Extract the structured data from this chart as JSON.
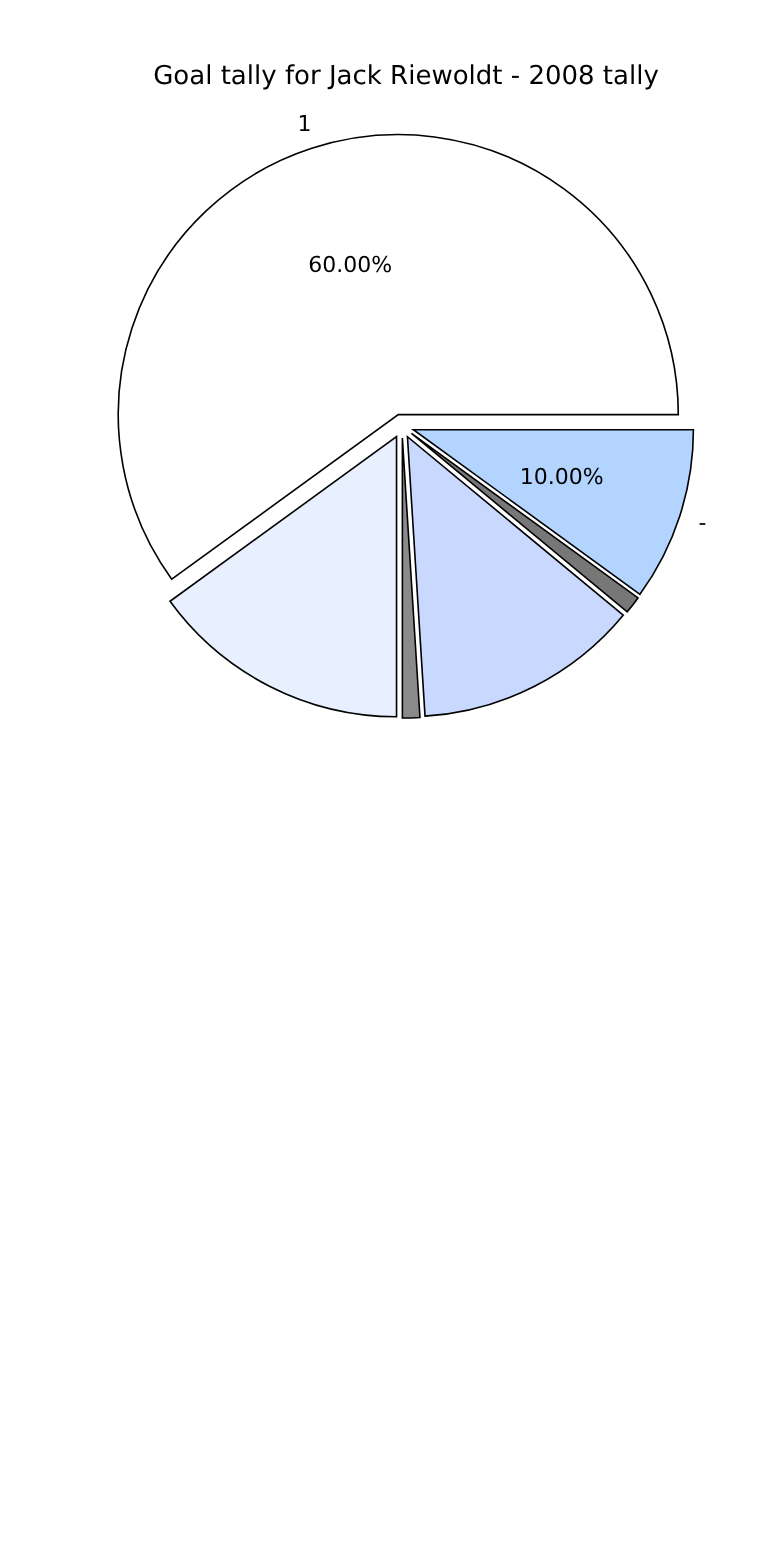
{
  "chart_data": {
    "type": "pie",
    "title": "Goal tally for Jack Riewoldt - 2008 tally",
    "categories": [
      "1",
      null,
      null,
      null,
      null,
      "-"
    ],
    "values": [
      60,
      15,
      1,
      13,
      1,
      10
    ],
    "colors": [
      "#ffffff",
      "#e8f0ff",
      "#8a8a8a",
      "#c8d8ff",
      "#777777",
      "#b3d4ff"
    ],
    "value_labels": [
      "60.00%",
      null,
      null,
      null,
      null,
      "10.00%"
    ]
  }
}
